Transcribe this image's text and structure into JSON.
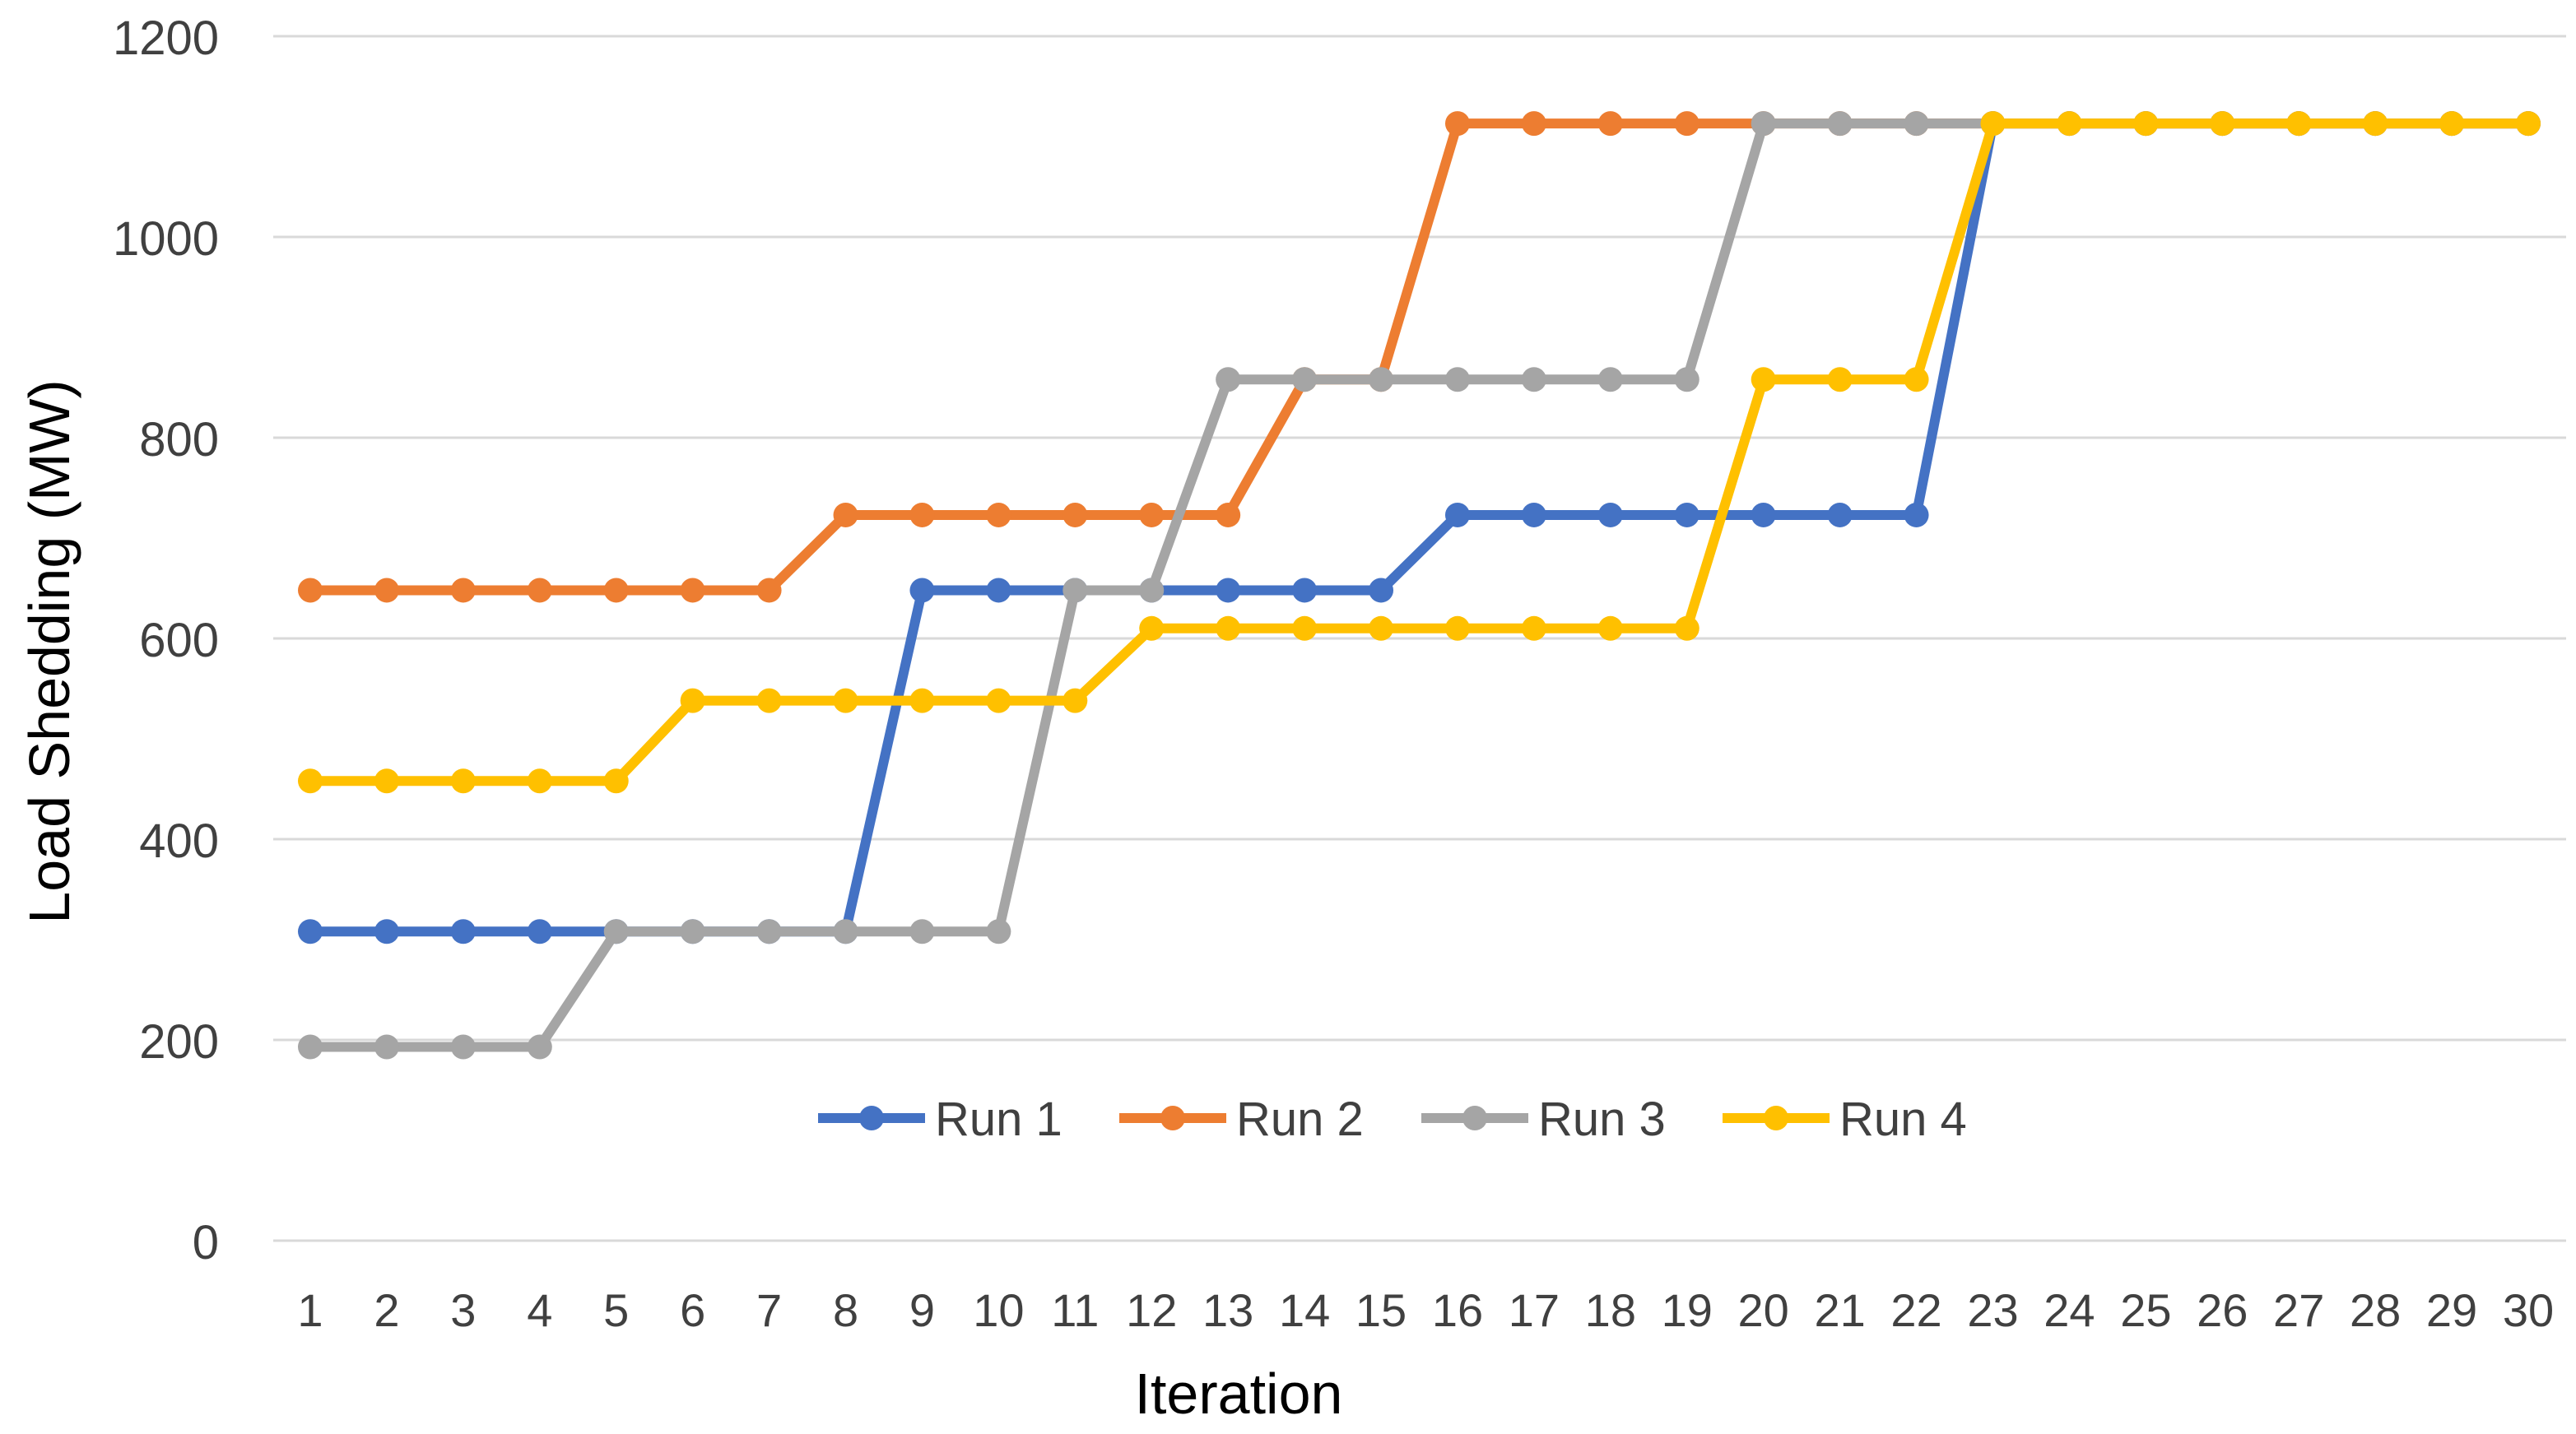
{
  "chart_data": {
    "type": "line",
    "xlabel": "Iteration",
    "ylabel": "Load Shedding (MW)",
    "categories": [
      "1",
      "2",
      "3",
      "4",
      "5",
      "6",
      "7",
      "8",
      "9",
      "10",
      "11",
      "12",
      "13",
      "14",
      "15",
      "16",
      "17",
      "18",
      "19",
      "20",
      "21",
      "22",
      "23",
      "24",
      "25",
      "26",
      "27",
      "28",
      "29",
      "30"
    ],
    "y_ticks": [
      "0",
      "200",
      "400",
      "600",
      "800",
      "1000",
      "1200"
    ],
    "ylim": [
      0,
      1200
    ],
    "grid": "horizontal",
    "legend_position": "inside-lower-center",
    "series": [
      {
        "name": "Run 1",
        "color": "#4472C4",
        "values": [
          308,
          308,
          308,
          308,
          308,
          308,
          308,
          308,
          648,
          648,
          648,
          648,
          648,
          648,
          648,
          723,
          723,
          723,
          723,
          723,
          723,
          723,
          1113,
          1113,
          1113,
          1113,
          1113,
          1113,
          1113,
          1113
        ]
      },
      {
        "name": "Run 2",
        "color": "#ED7D31",
        "values": [
          648,
          648,
          648,
          648,
          648,
          648,
          648,
          723,
          723,
          723,
          723,
          723,
          723,
          858,
          858,
          1113,
          1113,
          1113,
          1113,
          1113,
          1113,
          1113,
          1113,
          1113,
          1113,
          1113,
          1113,
          1113,
          1113,
          1113
        ]
      },
      {
        "name": "Run 3",
        "color": "#A5A5A5",
        "values": [
          193,
          193,
          193,
          193,
          308,
          308,
          308,
          308,
          308,
          308,
          648,
          648,
          858,
          858,
          858,
          858,
          858,
          858,
          858,
          1113,
          1113,
          1113,
          1113,
          1113,
          1113,
          1113,
          1113,
          1113,
          1113,
          1113
        ]
      },
      {
        "name": "Run 4",
        "color": "#FFC000",
        "values": [
          458,
          458,
          458,
          458,
          458,
          538,
          538,
          538,
          538,
          538,
          538,
          610,
          610,
          610,
          610,
          610,
          610,
          610,
          610,
          858,
          858,
          858,
          1113,
          1113,
          1113,
          1113,
          1113,
          1113,
          1113,
          1113
        ]
      }
    ]
  }
}
